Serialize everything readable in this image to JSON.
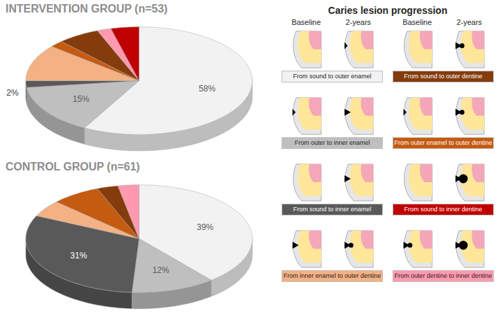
{
  "chart_data": [
    {
      "type": "pie",
      "title": "INTERVENTION GROUP (n=53)",
      "categories": [
        "From sound to outer enamel",
        "From outer to inner enamel",
        "From sound to inner enamel",
        "From inner enamel to outer dentine",
        "From outer enamel to outer dentine",
        "From sound to outer dentine",
        "From outer dentine to inner dentine",
        "From sound to inner dentine"
      ],
      "values": [
        58,
        15,
        2,
        11,
        2,
        6,
        2,
        4
      ],
      "value_labels": [
        "58%",
        "15%",
        "2%",
        null,
        null,
        null,
        null,
        null
      ],
      "colors": [
        "#f2f2f2",
        "#bfbfbf",
        "#595959",
        "#f4b183",
        "#c55a11",
        "#843c0c",
        "#ff99b0",
        "#c00000"
      ],
      "data_labels": true,
      "legend": "right"
    },
    {
      "type": "pie",
      "title": "CONTROL GROUP (n=61)",
      "categories": [
        "From sound to outer enamel",
        "From outer to inner enamel",
        "From sound to inner enamel",
        "From inner enamel to outer dentine",
        "From outer enamel to outer dentine",
        "From sound to outer dentine",
        "From outer dentine to inner dentine",
        "From sound to inner dentine"
      ],
      "values": [
        39,
        12,
        31,
        5,
        7,
        3,
        3,
        0
      ],
      "value_labels": [
        "39%",
        "12%",
        "31%",
        null,
        null,
        null,
        null,
        null
      ],
      "colors": [
        "#f2f2f2",
        "#bfbfbf",
        "#595959",
        "#f4b183",
        "#c55a11",
        "#843c0c",
        "#ff99b0",
        "#c00000"
      ],
      "data_labels": true,
      "legend": "right"
    }
  ],
  "legend_panel": {
    "title": "Caries lesion progression",
    "column_heads": [
      "Baseline",
      "2-years"
    ]
  }
}
